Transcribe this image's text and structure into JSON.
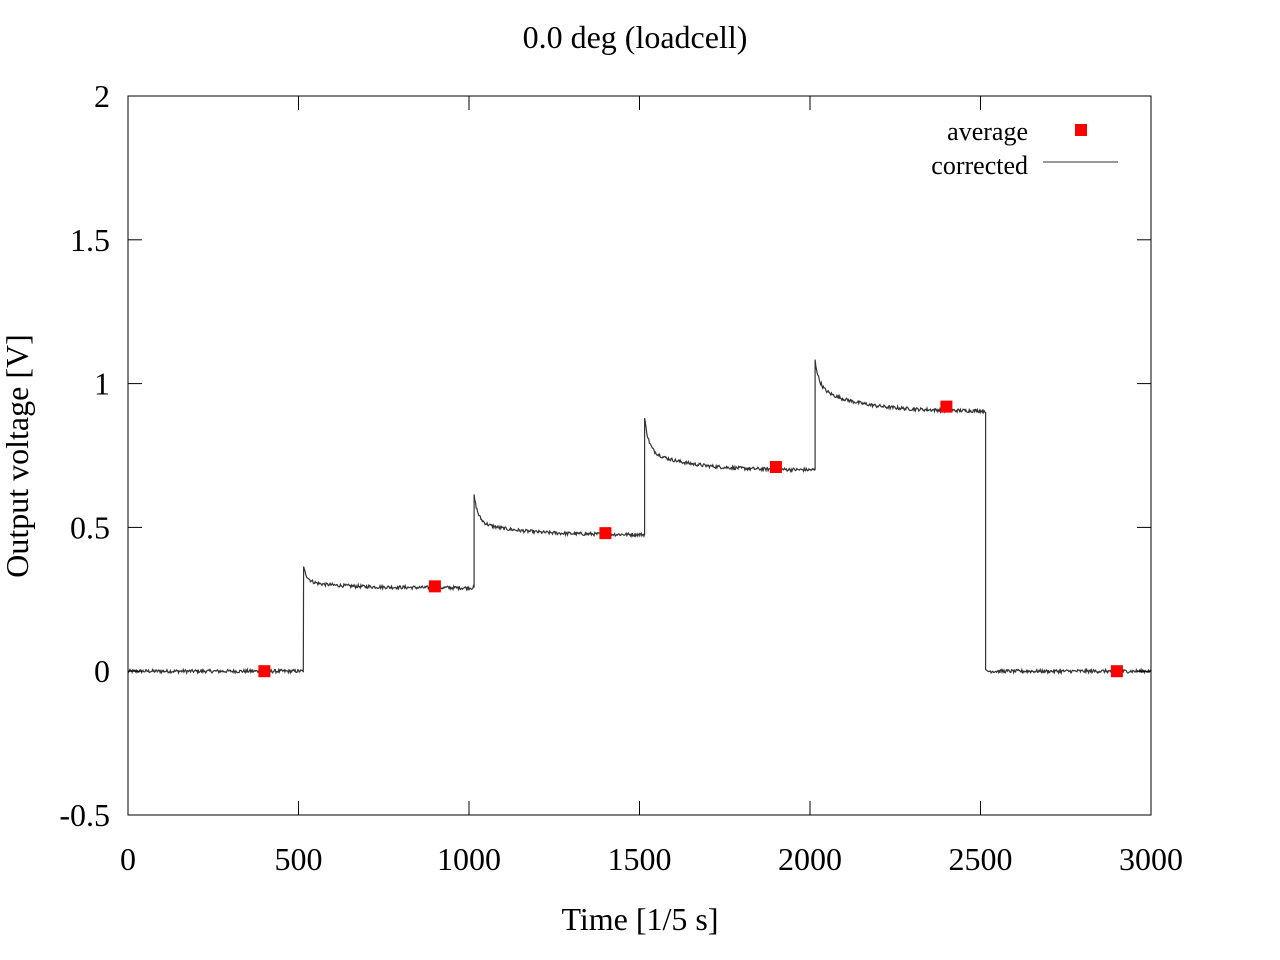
{
  "chart_data": {
    "type": "line",
    "title": "0.0 deg (loadcell)",
    "xlabel": "Time [1/5 s]",
    "ylabel": "Output voltage [V]",
    "xlim": [
      0,
      3000
    ],
    "ylim": [
      -0.5,
      2
    ],
    "x_ticks": [
      0,
      500,
      1000,
      1500,
      2000,
      2500,
      3000
    ],
    "x_tick_labels": [
      "0",
      "500",
      "1000",
      "1500",
      "2000",
      "2500",
      "3000"
    ],
    "y_ticks": [
      -0.5,
      0,
      0.5,
      1,
      1.5,
      2
    ],
    "y_tick_labels": [
      "-0.5",
      "0",
      "0.5",
      "1",
      "1.5",
      "2"
    ],
    "grid": false,
    "legend_position": "top-right",
    "series": [
      {
        "name": "average",
        "type": "scatter",
        "marker": "square",
        "color": "#ff0000",
        "x": [
          400,
          900,
          1400,
          1900,
          2400,
          2900
        ],
        "y": [
          0.0,
          0.295,
          0.48,
          0.71,
          0.92,
          0.0
        ]
      },
      {
        "name": "corrected",
        "type": "line",
        "color": "#333333",
        "segments": [
          {
            "x_start": 0,
            "x_end": 515,
            "y_start": 0.0,
            "y_end": 0.0,
            "peak": 0.0
          },
          {
            "x_start": 515,
            "x_end": 1015,
            "y_start": 0.31,
            "y_end": 0.29,
            "peak": 0.36
          },
          {
            "x_start": 1015,
            "x_end": 1515,
            "y_start": 0.52,
            "y_end": 0.475,
            "peak": 0.61
          },
          {
            "x_start": 1515,
            "x_end": 2015,
            "y_start": 0.77,
            "y_end": 0.7,
            "peak": 0.88
          },
          {
            "x_start": 2015,
            "x_end": 2515,
            "y_start": 0.99,
            "y_end": 0.905,
            "peak": 1.08
          },
          {
            "x_start": 2515,
            "x_end": 3000,
            "y_start": 0.0,
            "y_end": 0.0,
            "peak": 0.0
          }
        ]
      }
    ]
  }
}
